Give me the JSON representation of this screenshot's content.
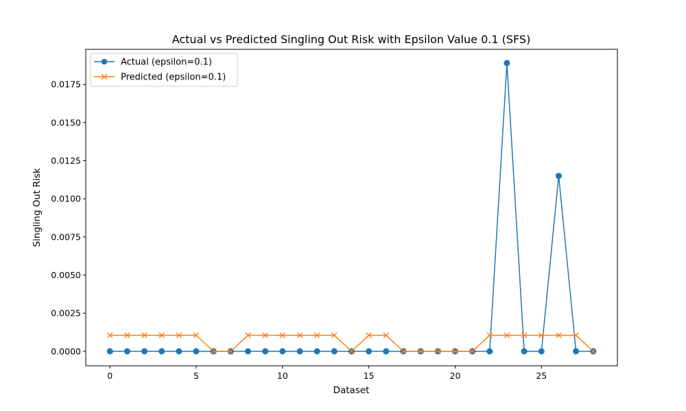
{
  "chart_data": {
    "type": "line",
    "title": "Actual vs Predicted Singling Out Risk with Epsilon Value 0.1 (SFS)",
    "xlabel": "Dataset",
    "ylabel": "Singling Out Risk",
    "xlim": [
      -1.4,
      29.4
    ],
    "ylim": [
      -0.00095,
      0.0198
    ],
    "x_ticks": [
      0,
      5,
      10,
      15,
      20,
      25
    ],
    "x_tick_labels": [
      "0",
      "5",
      "10",
      "15",
      "20",
      "25"
    ],
    "y_ticks": [
      0,
      0.0025,
      0.005,
      0.0075,
      0.01,
      0.0125,
      0.015,
      0.0175
    ],
    "y_tick_labels": [
      "0.0000",
      "0.0025",
      "0.0050",
      "0.0075",
      "0.0100",
      "0.0125",
      "0.0150",
      "0.0175"
    ],
    "grid": false,
    "legend_position": "top-left",
    "x": [
      0,
      1,
      2,
      3,
      4,
      5,
      6,
      7,
      8,
      9,
      10,
      11,
      12,
      13,
      14,
      15,
      16,
      17,
      18,
      19,
      20,
      21,
      22,
      23,
      24,
      25,
      26,
      27,
      28
    ],
    "series": [
      {
        "name": "Actual (epsilon=0.1)",
        "color": "#1f77b4",
        "marker": "circle",
        "values": [
          0,
          0,
          0,
          0,
          0,
          0,
          0,
          0,
          0,
          0,
          0,
          0,
          0,
          0,
          0,
          0,
          0,
          0,
          0,
          0,
          0,
          0,
          0,
          0.0189,
          0,
          0,
          0.0115,
          0,
          0
        ]
      },
      {
        "name": "Predicted (epsilon=0.1)",
        "color": "#ff7f0e",
        "marker": "x",
        "values": [
          0.00105,
          0.00105,
          0.00105,
          0.00105,
          0.00105,
          0.00105,
          0,
          0,
          0.00105,
          0.00105,
          0.00105,
          0.00105,
          0.00105,
          0.00105,
          0,
          0.00105,
          0.00105,
          0,
          0,
          0,
          0,
          0,
          0.00105,
          0.00105,
          0.00105,
          0.00105,
          0.00105,
          0.00105,
          0
        ]
      }
    ]
  }
}
